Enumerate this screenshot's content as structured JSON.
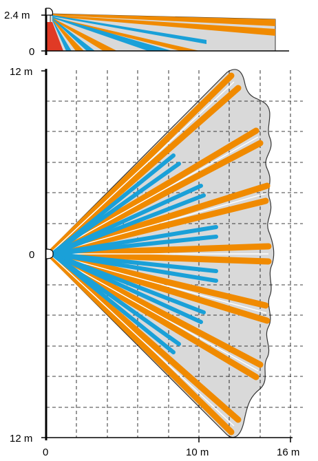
{
  "side_view": {
    "height_top_label": "2.4 m",
    "height_zero_label": "0"
  },
  "top_view": {
    "y_top_label": "12 m",
    "y_center_label": "0",
    "y_bottom_label": "12 m",
    "x_zero_label": "0",
    "x_mid_label": "10 m",
    "x_end_label": "16 m"
  },
  "colors": {
    "orange_beam": "#f08a00",
    "blue_beam": "#1aa0d8",
    "coverage_fill": "#d9d9d9",
    "creep_zone": "#e03a25",
    "grid": "#000000"
  },
  "icons": {
    "sensor": "sensor-icon"
  }
}
